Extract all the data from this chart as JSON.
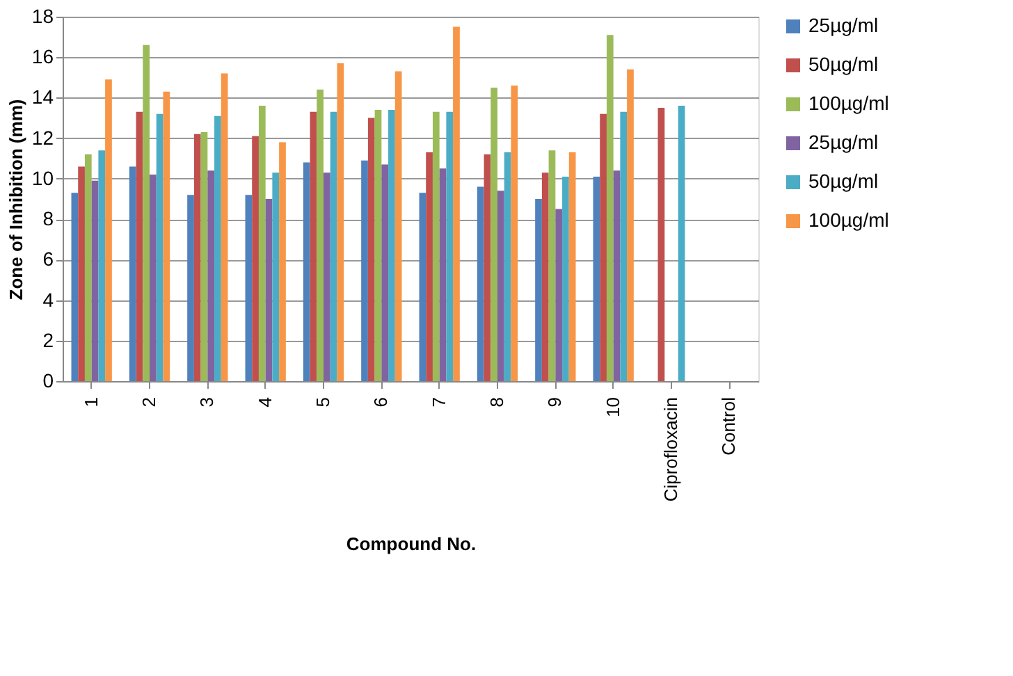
{
  "chart_data": {
    "type": "bar",
    "xlabel": "Compound No.",
    "ylabel": "Zone  of  Inhibition (mm)",
    "categories": [
      "1",
      "2",
      "3",
      "4",
      "5",
      "6",
      "7",
      "8",
      "9",
      "10",
      "Ciprofloxacin",
      "Control"
    ],
    "series": [
      {
        "name": "25µg/ml",
        "color": "#4f81bd",
        "values": [
          9.3,
          10.6,
          9.2,
          9.2,
          10.8,
          10.9,
          9.3,
          9.6,
          9.0,
          10.1,
          0,
          0
        ]
      },
      {
        "name": "50µg/ml",
        "color": "#c0504d",
        "values": [
          10.6,
          13.3,
          12.2,
          12.1,
          13.3,
          13.0,
          11.3,
          11.2,
          10.3,
          13.2,
          13.5,
          0
        ]
      },
      {
        "name": "100µg/ml",
        "color": "#9bbb59",
        "values": [
          11.2,
          16.6,
          12.3,
          13.6,
          14.4,
          13.4,
          13.3,
          14.5,
          11.4,
          17.1,
          0,
          0
        ]
      },
      {
        "name": "25µg/ml",
        "color": "#8064a2",
        "values": [
          9.9,
          10.2,
          10.4,
          9.0,
          10.3,
          10.7,
          10.5,
          9.4,
          8.5,
          10.4,
          0,
          0
        ]
      },
      {
        "name": "50µg/ml",
        "color": "#4bacc6",
        "values": [
          11.4,
          13.2,
          13.1,
          10.3,
          13.3,
          13.4,
          13.3,
          11.3,
          10.1,
          13.3,
          13.6,
          0
        ]
      },
      {
        "name": "100µg/ml",
        "color": "#f79646",
        "values": [
          14.9,
          14.3,
          15.2,
          11.8,
          15.7,
          15.3,
          17.5,
          14.6,
          11.3,
          15.4,
          0,
          0
        ]
      }
    ],
    "ylim": [
      0,
      18
    ],
    "yticks": [
      0,
      2,
      4,
      6,
      8,
      10,
      12,
      14,
      16,
      18
    ],
    "grid": "y",
    "legend": "right"
  }
}
